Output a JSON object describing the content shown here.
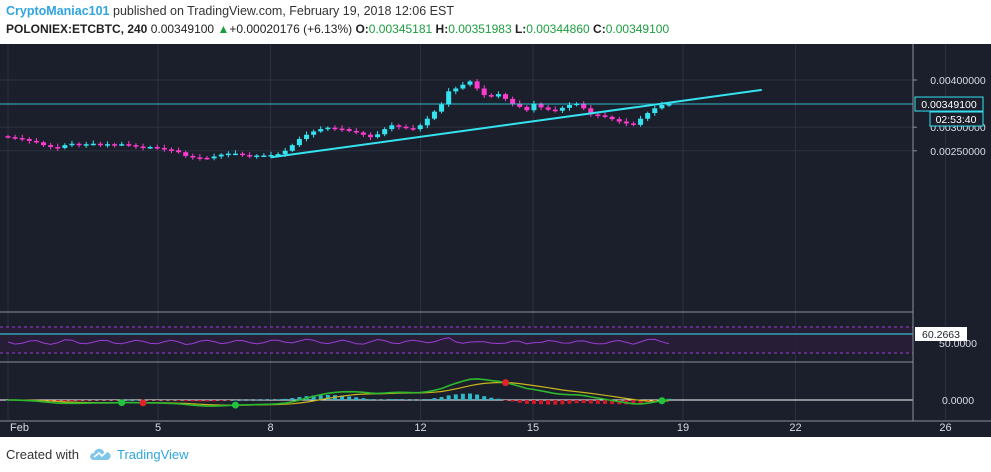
{
  "header": {
    "author": "CryptoManiac101",
    "published_text": "published on TradingView.com, February 19, 2018 12:06 EST",
    "symbol": "POLONIEX:ETCBTC, 240",
    "last": "0.00349100",
    "change_arrow": "▲",
    "change": "+0.00020176 (+6.13%)",
    "o_label": "O:",
    "o_value": "0.00345181",
    "h_label": "H:",
    "h_value": "0.00351983",
    "l_label": "L:",
    "l_value": "0.00344860",
    "c_label": "C:",
    "c_value": "0.00349100"
  },
  "footer": {
    "created_with": "Created with",
    "brand": "TradingView"
  },
  "colors": {
    "background": "#1b1f2b",
    "up_candle": "#35e3f0",
    "down_candle": "#ff3bd0",
    "trendline": "#35e3f0",
    "rsi_line": "#9c3bd6",
    "macd_line": "#2db82d",
    "signal_line": "#c9b41c",
    "hist_pos": "#2fb8c9",
    "hist_neg": "#d0182a",
    "cross_green": "#21c43f",
    "cross_red": "#e0242c",
    "accent": "#2fa5e0"
  },
  "chart_data": {
    "type": "candlestick",
    "symbol": "POLONIEX:ETCBTC",
    "interval": "240",
    "x_tick_labels": [
      "Feb",
      "5",
      "8",
      "12",
      "15",
      "19",
      "22",
      "26"
    ],
    "price_axis_ticks": [
      "0.00400000",
      "0.00300000",
      "0.00250000"
    ],
    "price_ylim": [
      0.0022,
      0.0042
    ],
    "last_price_label": "0.00349100",
    "countdown_label": "02:53:40",
    "rsi_value_label": "60.2663",
    "rsi_hidden_tick_label": "50.0000",
    "macd_zero_label": "0.0000",
    "closes": [
      0.00279,
      0.00277,
      0.00275,
      0.00271,
      0.00268,
      0.00262,
      0.00258,
      0.00256,
      0.00262,
      0.00265,
      0.00262,
      0.00264,
      0.00265,
      0.00262,
      0.00264,
      0.00263,
      0.00264,
      0.00262,
      0.00259,
      0.00257,
      0.00258,
      0.00256,
      0.00253,
      0.00251,
      0.00247,
      0.00239,
      0.00236,
      0.00235,
      0.00234,
      0.00238,
      0.00242,
      0.00244,
      0.00244,
      0.00241,
      0.00239,
      0.0024,
      0.0024,
      0.00241,
      0.00243,
      0.0025,
      0.00262,
      0.00275,
      0.00284,
      0.00291,
      0.00296,
      0.00299,
      0.00297,
      0.00296,
      0.00292,
      0.00289,
      0.00284,
      0.00279,
      0.00285,
      0.00296,
      0.00304,
      0.00301,
      0.00298,
      0.00296,
      0.00304,
      0.00318,
      0.00333,
      0.00348,
      0.00376,
      0.00382,
      0.0039,
      0.00397,
      0.00382,
      0.00368,
      0.00365,
      0.0037,
      0.0036,
      0.0035,
      0.00343,
      0.00336,
      0.0035,
      0.00342,
      0.00337,
      0.00335,
      0.00341,
      0.00347,
      0.0035,
      0.0034,
      0.00327,
      0.00325,
      0.00322,
      0.00317,
      0.00312,
      0.00308,
      0.00305,
      0.00318,
      0.0033,
      0.0034,
      0.00347,
      0.00349
    ],
    "trendline": [
      {
        "date": "Feb 8",
        "price": 0.00236
      },
      {
        "date": "Feb 21",
        "price": 0.00379
      }
    ],
    "indicators": [
      "RSI",
      "MACD"
    ]
  }
}
